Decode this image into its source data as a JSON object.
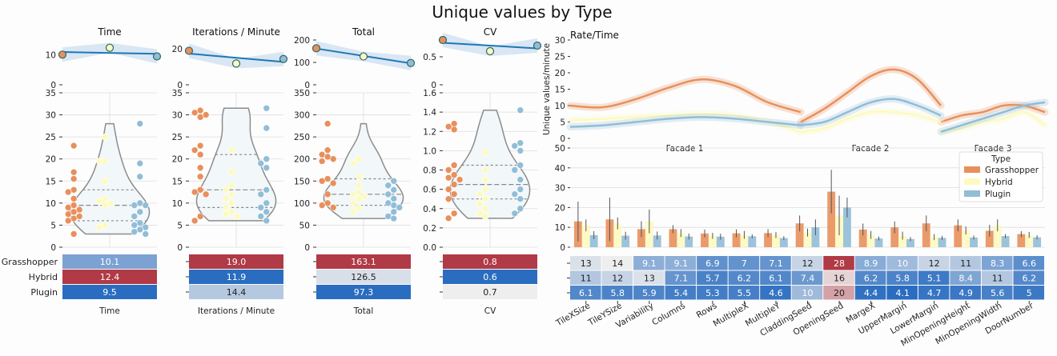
{
  "title": "Unique values by Type",
  "colors": {
    "Grasshopper": "#e8905c",
    "Hybrid": "#fdfac0",
    "Plugin": "#91bdd7",
    "line": "#1f77b4",
    "violin": "#f2f7fa",
    "heat_high": "#b03a46",
    "heat_low": "#2a6dc0",
    "heat_mid": "#eeeeee"
  },
  "chart_data": [
    {
      "type": "scatter",
      "title": "Time",
      "top_line": {
        "x": [
          0,
          1,
          2
        ],
        "y": [
          10.1,
          12.4,
          9.5
        ],
        "ylim": [
          0,
          15
        ],
        "yticks": [
          0,
          10
        ]
      },
      "violin": {
        "ylim": [
          0,
          35
        ],
        "yticks": [
          0,
          5,
          10,
          15,
          20,
          25,
          30,
          35
        ]
      },
      "points": {
        "Grasshopper": [
          23,
          17,
          15.5,
          13,
          12.5,
          11,
          9.5,
          9,
          8.5,
          8,
          7.5,
          7,
          6.5,
          6,
          3
        ],
        "Hybrid": [
          25,
          19.5,
          19.5,
          15,
          11,
          10.5,
          10,
          9.5,
          5,
          4.5
        ],
        "Plugin": [
          28,
          19,
          16,
          10,
          9.5,
          9.5,
          8,
          7,
          5.5,
          5,
          4.5,
          4,
          3.5,
          3
        ]
      },
      "table": {
        "xlabel": "Time",
        "rows": [
          "Grasshopper",
          "Hybrid",
          "Plugin"
        ],
        "values": [
          "10.1",
          "12.4",
          "9.5"
        ]
      }
    },
    {
      "type": "scatter",
      "title": "Iterations / Minute",
      "top_line": {
        "x": [
          0,
          1,
          2
        ],
        "y": [
          19.0,
          11.9,
          14.4
        ],
        "ylim": [
          0,
          25
        ],
        "yticks": [
          0,
          20
        ]
      },
      "violin": {
        "ylim": [
          0,
          35
        ],
        "yticks": [
          0,
          5,
          10,
          15,
          20,
          25,
          30,
          35
        ]
      },
      "points": {
        "Grasshopper": [
          31,
          30.5,
          30,
          29.5,
          23,
          22,
          21,
          18,
          16,
          13,
          12.5,
          12,
          7,
          6
        ],
        "Hybrid": [
          22,
          17,
          14,
          13,
          12,
          11,
          10,
          9,
          8,
          7.5,
          7
        ],
        "Plugin": [
          31.5,
          27,
          20,
          19,
          18,
          13,
          12,
          10,
          9,
          8,
          7,
          6
        ]
      },
      "table": {
        "xlabel": "Iterations / Minute",
        "rows": [
          "Grasshopper",
          "Hybrid",
          "Plugin"
        ],
        "values": [
          "19.0",
          "11.9",
          "14.4"
        ]
      }
    },
    {
      "type": "scatter",
      "title": "Total",
      "top_line": {
        "x": [
          0,
          1,
          2
        ],
        "y": [
          163.1,
          126.5,
          97.3
        ],
        "ylim": [
          0,
          200
        ],
        "yticks": [
          0,
          100,
          200
        ]
      },
      "violin": {
        "ylim": [
          0,
          350
        ],
        "yticks": [
          0,
          50,
          100,
          150,
          200,
          250,
          300,
          350
        ]
      },
      "points": {
        "Grasshopper": [
          280,
          220,
          210,
          205,
          200,
          195,
          155,
          150,
          145,
          120,
          100,
          95,
          90
        ],
        "Hybrid": [
          200,
          190,
          160,
          140,
          125,
          120,
          115,
          110,
          100,
          90,
          80
        ],
        "Plugin": [
          150,
          140,
          130,
          120,
          110,
          100,
          95,
          90,
          80,
          70,
          65
        ]
      },
      "table": {
        "xlabel": "Total",
        "rows": [
          "Grasshopper",
          "Hybrid",
          "Plugin"
        ],
        "values": [
          "163.1",
          "126.5",
          "97.3"
        ]
      }
    },
    {
      "type": "scatter",
      "title": "CV",
      "top_line": {
        "x": [
          0,
          1,
          2
        ],
        "y": [
          0.8,
          0.6,
          0.7
        ],
        "ylim": [
          0,
          0.8
        ],
        "yticks": [
          0,
          0.5
        ]
      },
      "violin": {
        "ylim": [
          0,
          1.6
        ],
        "yticks": [
          0.0,
          0.2,
          0.4,
          0.6,
          0.8,
          1.0,
          1.2,
          1.4,
          1.6
        ]
      },
      "points": {
        "Grasshopper": [
          1.28,
          1.25,
          1.22,
          0.85,
          0.8,
          0.75,
          0.72,
          0.7,
          0.65,
          0.6,
          0.55,
          0.5,
          0.35,
          0.3
        ],
        "Hybrid": [
          0.98,
          0.8,
          0.7,
          0.6,
          0.55,
          0.5,
          0.45,
          0.4,
          0.35,
          0.32
        ],
        "Plugin": [
          1.42,
          1.08,
          1.05,
          1.0,
          0.85,
          0.8,
          0.7,
          0.6,
          0.55,
          0.5,
          0.4,
          0.35
        ]
      },
      "table": {
        "xlabel": "CV",
        "rows": [
          "Grasshopper",
          "Hybrid",
          "Plugin"
        ],
        "values": [
          "0.8",
          "0.6",
          "0.7"
        ]
      }
    },
    {
      "type": "line",
      "title": "Rate/Time",
      "ylabel": "Unique values/minute",
      "ylim": [
        0,
        30
      ],
      "yticks": [
        0,
        5,
        10,
        15,
        20,
        25,
        30
      ],
      "segments": [
        "Facade 1",
        "Facade 2",
        "Facade 3"
      ],
      "series": [
        {
          "name": "Grasshopper",
          "segments": [
            [
              10,
              9.5,
              12,
              15.5,
              18,
              16,
              11,
              8
            ],
            [
              5,
              9,
              14,
              19,
              21,
              18,
              10
            ],
            [
              5,
              7,
              8,
              10,
              10,
              8
            ]
          ]
        },
        {
          "name": "Hybrid",
          "segments": [
            [
              5.5,
              6,
              6.5,
              7,
              7.5,
              7,
              5,
              2
            ],
            [
              2,
              3,
              6,
              8,
              8,
              7,
              5
            ],
            [
              2,
              3,
              5,
              6,
              8,
              4
            ]
          ]
        },
        {
          "name": "Plugin",
          "segments": [
            [
              3.5,
              4,
              5,
              6,
              6.5,
              6,
              5,
              4
            ],
            [
              4,
              5,
              8,
              11,
              12,
              10,
              7
            ],
            [
              2,
              4,
              6,
              8,
              10,
              11
            ]
          ]
        }
      ]
    },
    {
      "type": "bar",
      "ylim": [
        0,
        50
      ],
      "yticks": [
        0,
        10,
        20,
        30,
        40,
        50
      ],
      "categories": [
        "TileXSize",
        "TileYSize",
        "Variability",
        "Columns",
        "Rows",
        "MultipleX",
        "MultipleY",
        "CladdingSeed",
        "OpeningSeed",
        "MargeX",
        "UpperMargin",
        "LowerMargin",
        "MinOpeningHeight",
        "MinOpeningWidth",
        "DoorNumber"
      ],
      "legend": {
        "title": "Type",
        "position": "upper right"
      },
      "series": [
        {
          "name": "Grasshopper",
          "values": [
            13,
            14,
            9.1,
            9.1,
            6.9,
            7,
            7.1,
            12,
            28,
            8.9,
            10,
            12,
            11,
            8.3,
            6.6
          ],
          "err": [
            10,
            11,
            4,
            2,
            2,
            2,
            2,
            4,
            11,
            3,
            3,
            4,
            3,
            3,
            1.5
          ]
        },
        {
          "name": "Hybrid",
          "values": [
            11,
            12,
            13,
            7.1,
            5.7,
            6.2,
            6.1,
            7.4,
            16,
            6.2,
            5.8,
            5.1,
            8.4,
            11,
            6.2
          ],
          "err": [
            3,
            3,
            6,
            2,
            1.5,
            2,
            1.5,
            2,
            10,
            2,
            2,
            1.5,
            2,
            3,
            1.5
          ]
        },
        {
          "name": "Plugin",
          "values": [
            6.1,
            5.8,
            5.9,
            5.4,
            5.3,
            5.5,
            4.6,
            10,
            20,
            4.4,
            4.1,
            4.7,
            4.9,
            5.6,
            5
          ],
          "err": [
            2,
            2,
            2,
            1.5,
            1.5,
            1,
            1,
            4,
            5,
            1,
            1,
            1,
            1,
            1,
            1
          ]
        }
      ],
      "table": {
        "rows": [
          [
            "13",
            "14",
            "9.1",
            "9.1",
            "6.9",
            "7",
            "7.1",
            "12",
            "28",
            "8.9",
            "10",
            "12",
            "11",
            "8.3",
            "6.6"
          ],
          [
            "11",
            "12",
            "13",
            "7.1",
            "5.7",
            "6.2",
            "6.1",
            "7.4",
            "16",
            "6.2",
            "5.8",
            "5.1",
            "8.4",
            "11",
            "6.2"
          ],
          [
            "6.1",
            "5.8",
            "5.9",
            "5.4",
            "5.3",
            "5.5",
            "4.6",
            "10",
            "20",
            "4.4",
            "4.1",
            "4.7",
            "4.9",
            "5.6",
            "5"
          ]
        ]
      }
    }
  ]
}
